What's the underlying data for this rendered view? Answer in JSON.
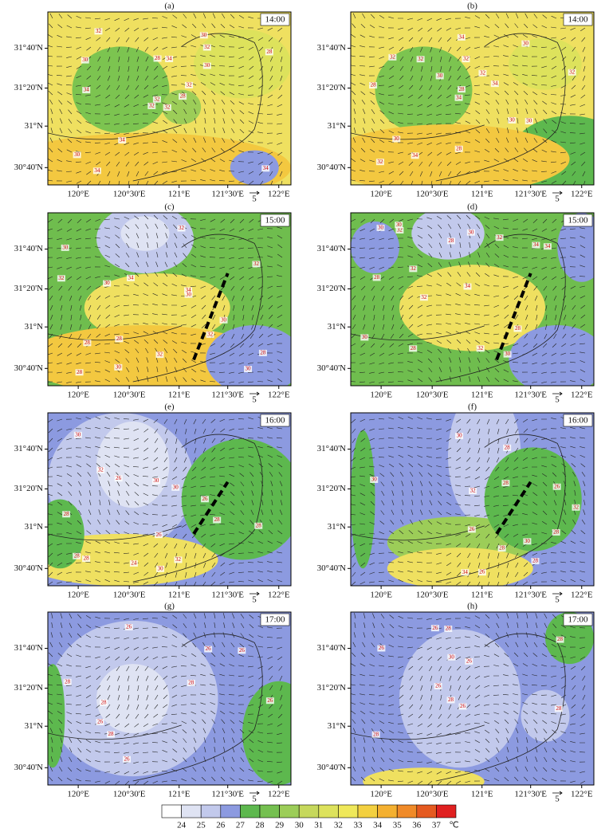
{
  "panels": [
    {
      "label": "(a)",
      "time": "14:00",
      "temps": [
        32,
        30,
        32,
        30,
        32,
        34,
        30,
        34,
        32,
        28,
        32,
        34,
        34,
        28,
        32,
        30,
        34,
        28
      ]
    },
    {
      "label": "(b)",
      "time": "14:00",
      "temps": [
        32,
        30,
        30,
        32,
        34,
        32,
        34,
        30,
        32,
        34,
        28,
        30,
        32,
        34,
        28,
        28,
        32,
        30
      ]
    },
    {
      "label": "(c)",
      "time": "15:00",
      "temps": [
        28,
        30,
        28,
        30,
        32,
        34,
        30,
        32,
        30,
        32,
        34,
        28,
        32,
        30,
        28,
        32,
        30
      ]
    },
    {
      "label": "(d)",
      "time": "15:00",
      "temps": [
        28,
        30,
        28,
        32,
        30,
        32,
        34,
        30,
        32,
        28,
        32,
        34,
        30,
        32,
        28,
        34,
        30
      ]
    },
    {
      "label": "(e)",
      "time": "16:00",
      "temps": [
        26,
        24,
        28,
        26,
        28,
        30,
        32,
        28,
        30,
        32,
        30,
        28,
        26,
        28,
        30
      ]
    },
    {
      "label": "(f)",
      "time": "16:00",
      "temps": [
        26,
        26,
        28,
        26,
        28,
        30,
        32,
        28,
        30,
        32,
        28,
        30,
        34,
        28
      ]
    },
    {
      "label": "(g)",
      "time": "17:00",
      "temps": [
        26,
        28,
        26,
        26,
        28,
        26,
        28,
        26,
        28,
        26
      ]
    },
    {
      "label": "(h)",
      "time": "17:00",
      "temps": [
        26,
        28,
        26,
        26,
        28,
        26,
        28,
        26,
        28,
        30,
        28
      ]
    }
  ],
  "x_labels": [
    "120°E",
    "120°30'E",
    "121°E",
    "121°30'E",
    "122°E"
  ],
  "y_labels": [
    "31°40'N",
    "31°20'N",
    "31°N",
    "30°40'N"
  ],
  "wind_reference": 5,
  "colorbar": {
    "ticks": [
      24,
      25,
      26,
      27,
      28,
      29,
      30,
      31,
      32,
      33,
      34,
      35,
      36,
      37
    ],
    "unit": "℃",
    "colors": [
      "#ffffff",
      "#dfe3f3",
      "#c2c9ec",
      "#8c9ae0",
      "#5db84e",
      "#75c050",
      "#9ccd58",
      "#c6d85c",
      "#dde25c",
      "#efe85a",
      "#f3d040",
      "#f4b030",
      "#f08a28",
      "#e55a20",
      "#e02020"
    ]
  }
}
